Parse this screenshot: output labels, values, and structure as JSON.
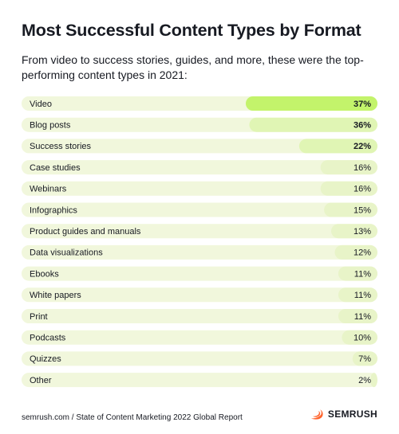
{
  "header": {
    "title": "Most Successful Content Types by Format",
    "subtitle": "From video to success stories, guides, and more, these were the top-performing content types in 2021:"
  },
  "chart_data": {
    "type": "bar",
    "orientation": "horizontal",
    "categories": [
      "Video",
      "Blog posts",
      "Success stories",
      "Case studies",
      "Webinars",
      "Infographics",
      "Product guides and manuals",
      "Data visualizations",
      "Ebooks",
      "White papers",
      "Print",
      "Podcasts",
      "Quizzes",
      "Other"
    ],
    "values": [
      37,
      36,
      22,
      16,
      16,
      15,
      13,
      12,
      11,
      11,
      11,
      10,
      7,
      2
    ],
    "value_labels": [
      "37%",
      "36%",
      "22%",
      "16%",
      "16%",
      "15%",
      "13%",
      "12%",
      "11%",
      "11%",
      "11%",
      "10%",
      "7%",
      "2%"
    ],
    "title": "Most Successful Content Types by Format",
    "xlim": [
      0,
      100
    ],
    "grid": false,
    "legend": "none",
    "colors": {
      "row_background": "#f1f7dc",
      "bar_top": "#c3f36b",
      "bar_mid": "#e0f5b4",
      "bar_rest": "#e8f4c8"
    }
  },
  "footer": {
    "source": "semrush.com / State of Content Marketing 2022 Global Report",
    "brand": "SEMRUSH",
    "brand_icon": "semrush-flame-icon",
    "brand_color": "#ff642d"
  }
}
